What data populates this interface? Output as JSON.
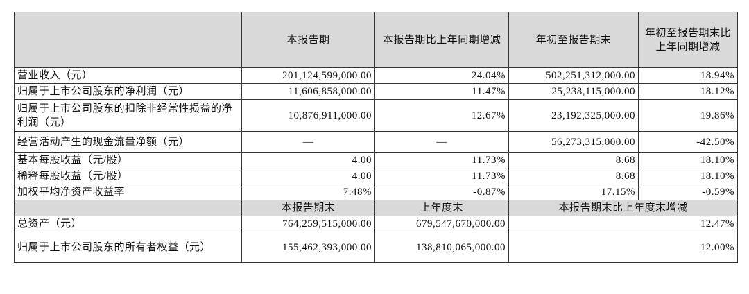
{
  "table": {
    "header": [
      "本报告期",
      "本报告期比上年同期增减",
      "年初至报告期末",
      "年初至报告期末比上年同期增减"
    ],
    "rows": [
      [
        "营业收入（元）",
        "201,124,599,000.00",
        "24.04%",
        "502,251,312,000.00",
        "18.94%"
      ],
      [
        "归属于上市公司股东的净利润（元）",
        "11,606,858,000.00",
        "11.47%",
        "25,238,115,000.00",
        "18.12%"
      ],
      [
        "归属于上市公司股东的扣除非经常性损益的净利润（元）",
        "10,876,911,000.00",
        "12.67%",
        "23,192,325,000.00",
        "19.86%"
      ],
      [
        "经营活动产生的现金流量净额（元）",
        "—",
        "—",
        "56,273,315,000.00",
        "-42.50%"
      ],
      [
        "基本每股收益（元/股）",
        "4.00",
        "11.73%",
        "8.68",
        "18.10%"
      ],
      [
        "稀释每股收益（元/股）",
        "4.00",
        "11.73%",
        "8.68",
        "18.10%"
      ],
      [
        "加权平均净资产收益率",
        "7.48%",
        "-0.87%",
        "17.15%",
        "-0.59%"
      ]
    ],
    "header2": [
      "本报告期末",
      "上年度末",
      "本报告期末比上年度末增减"
    ],
    "rows2": [
      [
        "总资产（元）",
        "764,259,515,000.00",
        "679,547,670,000.00",
        "12.47%"
      ],
      [
        "归属于上市公司股东的所有者权益（元）",
        "155,462,393,000.00",
        "138,810,065,000.00",
        "12.00%"
      ]
    ]
  }
}
